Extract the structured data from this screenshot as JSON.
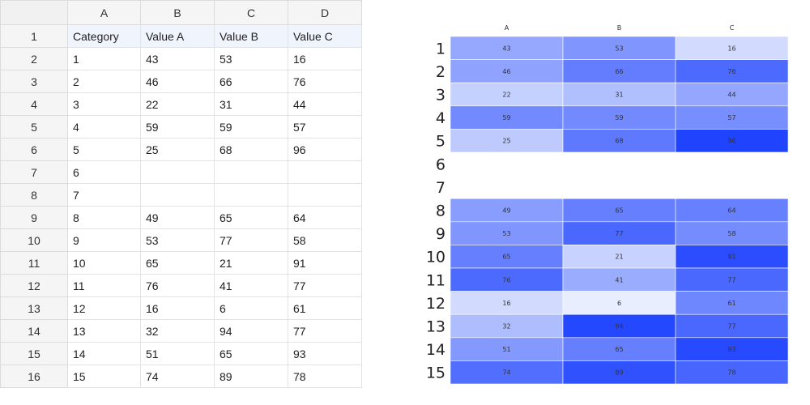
{
  "sheet": {
    "columns": [
      "A",
      "B",
      "C",
      "D"
    ],
    "row_numbers": [
      "1",
      "2",
      "3",
      "4",
      "5",
      "6",
      "7",
      "8",
      "9",
      "10",
      "11",
      "12",
      "13",
      "14",
      "15",
      "16"
    ],
    "rows": [
      [
        "Category",
        "Value A",
        "Value B",
        "Value C"
      ],
      [
        "1",
        "43",
        "53",
        "16"
      ],
      [
        "2",
        "46",
        "66",
        "76"
      ],
      [
        "3",
        "22",
        "31",
        "44"
      ],
      [
        "4",
        "59",
        "59",
        "57"
      ],
      [
        "5",
        "25",
        "68",
        "96"
      ],
      [
        "6",
        "",
        "",
        ""
      ],
      [
        "7",
        "",
        "",
        ""
      ],
      [
        "8",
        "49",
        "65",
        "64"
      ],
      [
        "9",
        "53",
        "77",
        "58"
      ],
      [
        "10",
        "65",
        "21",
        "91"
      ],
      [
        "11",
        "76",
        "41",
        "77"
      ],
      [
        "12",
        "16",
        "6",
        "61"
      ],
      [
        "13",
        "32",
        "94",
        "77"
      ],
      [
        "14",
        "51",
        "65",
        "93"
      ],
      [
        "15",
        "74",
        "89",
        "78"
      ]
    ]
  },
  "chart_data": {
    "type": "heatmap",
    "x_labels": [
      "A",
      "B",
      "C"
    ],
    "y_labels": [
      "1",
      "2",
      "3",
      "4",
      "5",
      "6",
      "7",
      "8",
      "9",
      "10",
      "11",
      "12",
      "13",
      "14",
      "15"
    ],
    "values": [
      [
        43,
        53,
        16
      ],
      [
        46,
        66,
        76
      ],
      [
        22,
        31,
        44
      ],
      [
        59,
        59,
        57
      ],
      [
        25,
        68,
        96
      ],
      [
        null,
        null,
        null
      ],
      [
        null,
        null,
        null
      ],
      [
        49,
        65,
        64
      ],
      [
        53,
        77,
        58
      ],
      [
        65,
        21,
        91
      ],
      [
        76,
        41,
        77
      ],
      [
        16,
        6,
        61
      ],
      [
        32,
        94,
        77
      ],
      [
        51,
        65,
        93
      ],
      [
        74,
        89,
        78
      ]
    ],
    "color_low": "#e8eefe",
    "color_high": "#2044fe",
    "vmin": 6,
    "vmax": 96
  }
}
